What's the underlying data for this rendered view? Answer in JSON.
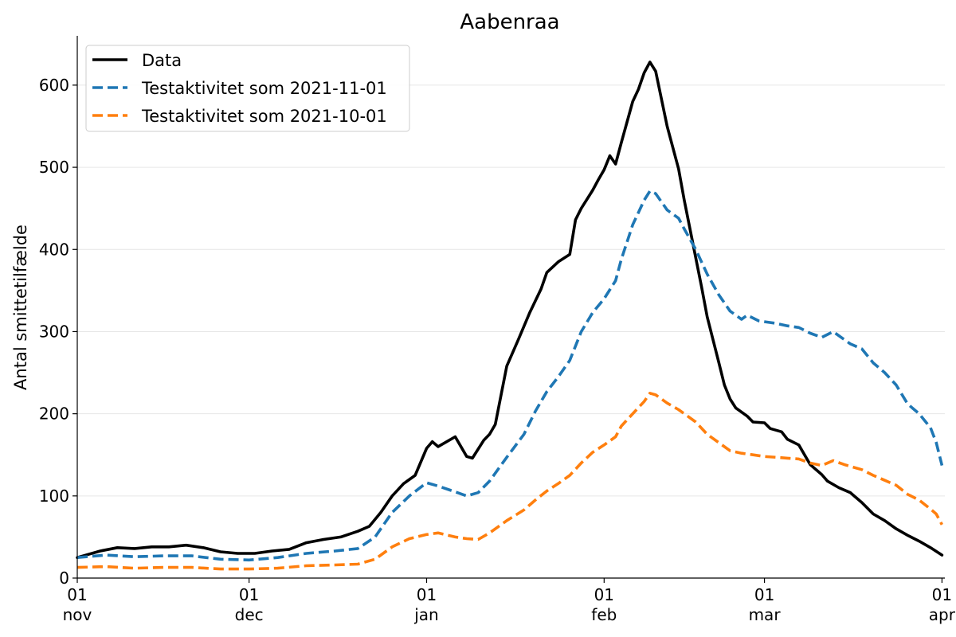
{
  "chart_data": {
    "type": "line",
    "title": "Aabenraa",
    "xlabel": "",
    "ylabel": "Antal smittetilfælde",
    "ylim": [
      0,
      660
    ],
    "yticks": [
      0,
      100,
      200,
      300,
      400,
      500,
      600
    ],
    "grid": "horizontal",
    "legend_position": "top-left",
    "xticks": [
      {
        "day": 0,
        "top": "01",
        "bottom": "nov"
      },
      {
        "day": 30,
        "top": "01",
        "bottom": "dec"
      },
      {
        "day": 61,
        "top": "01",
        "bottom": "jan"
      },
      {
        "day": 92,
        "top": "01",
        "bottom": "feb"
      },
      {
        "day": 120,
        "top": "01",
        "bottom": "mar"
      },
      {
        "day": 151,
        "top": "01",
        "bottom": "apr"
      }
    ],
    "x_start": "2021-11-01",
    "x_end": "2022-04-01",
    "series": [
      {
        "name": "Data",
        "color": "#000000",
        "dashed": false,
        "points": [
          [
            0,
            25
          ],
          [
            4,
            33
          ],
          [
            7,
            37
          ],
          [
            10,
            36
          ],
          [
            13,
            38
          ],
          [
            16,
            38
          ],
          [
            19,
            40
          ],
          [
            22,
            37
          ],
          [
            25,
            32
          ],
          [
            28,
            30
          ],
          [
            31,
            30
          ],
          [
            34,
            33
          ],
          [
            37,
            35
          ],
          [
            40,
            43
          ],
          [
            43,
            47
          ],
          [
            46,
            50
          ],
          [
            49,
            57
          ],
          [
            51,
            63
          ],
          [
            53,
            80
          ],
          [
            55,
            100
          ],
          [
            57,
            115
          ],
          [
            59,
            125
          ],
          [
            61,
            158
          ],
          [
            62,
            166
          ],
          [
            63,
            160
          ],
          [
            65,
            168
          ],
          [
            66,
            172
          ],
          [
            68,
            148
          ],
          [
            69,
            146
          ],
          [
            71,
            168
          ],
          [
            72,
            175
          ],
          [
            73,
            187
          ],
          [
            75,
            258
          ],
          [
            77,
            290
          ],
          [
            79,
            323
          ],
          [
            81,
            352
          ],
          [
            82,
            372
          ],
          [
            84,
            385
          ],
          [
            86,
            394
          ],
          [
            87,
            436
          ],
          [
            88,
            450
          ],
          [
            90,
            472
          ],
          [
            91,
            485
          ],
          [
            92,
            497
          ],
          [
            93,
            514
          ],
          [
            94,
            504
          ],
          [
            95,
            530
          ],
          [
            97,
            580
          ],
          [
            98,
            595
          ],
          [
            99,
            615
          ],
          [
            100,
            628
          ],
          [
            101,
            617
          ],
          [
            103,
            550
          ],
          [
            105,
            498
          ],
          [
            106,
            460
          ],
          [
            108,
            390
          ],
          [
            109,
            355
          ],
          [
            110,
            318
          ],
          [
            112,
            263
          ],
          [
            113,
            235
          ],
          [
            114,
            218
          ],
          [
            115,
            207
          ],
          [
            117,
            197
          ],
          [
            118,
            190
          ],
          [
            120,
            189
          ],
          [
            121,
            182
          ],
          [
            123,
            178
          ],
          [
            124,
            169
          ],
          [
            126,
            162
          ],
          [
            128,
            138
          ],
          [
            130,
            126
          ],
          [
            131,
            118
          ],
          [
            133,
            110
          ],
          [
            135,
            104
          ],
          [
            137,
            92
          ],
          [
            139,
            78
          ],
          [
            141,
            70
          ],
          [
            143,
            60
          ],
          [
            145,
            52
          ],
          [
            147,
            45
          ],
          [
            149,
            37
          ],
          [
            151,
            28
          ]
        ]
      },
      {
        "name": "Testaktivitet som 2021-11-01",
        "color": "#1f77b4",
        "dashed": true,
        "points": [
          [
            0,
            25
          ],
          [
            5,
            28
          ],
          [
            10,
            26
          ],
          [
            15,
            27
          ],
          [
            20,
            27
          ],
          [
            25,
            23
          ],
          [
            30,
            22
          ],
          [
            35,
            25
          ],
          [
            40,
            30
          ],
          [
            45,
            33
          ],
          [
            49,
            36
          ],
          [
            52,
            50
          ],
          [
            55,
            80
          ],
          [
            58,
            100
          ],
          [
            61,
            116
          ],
          [
            63,
            112
          ],
          [
            66,
            105
          ],
          [
            68,
            100
          ],
          [
            70,
            104
          ],
          [
            72,
            118
          ],
          [
            75,
            147
          ],
          [
            78,
            175
          ],
          [
            80,
            203
          ],
          [
            82,
            227
          ],
          [
            84,
            245
          ],
          [
            86,
            265
          ],
          [
            88,
            300
          ],
          [
            90,
            323
          ],
          [
            92,
            340
          ],
          [
            94,
            362
          ],
          [
            95,
            388
          ],
          [
            97,
            430
          ],
          [
            99,
            460
          ],
          [
            100,
            471
          ],
          [
            101,
            468
          ],
          [
            103,
            448
          ],
          [
            105,
            438
          ],
          [
            106,
            425
          ],
          [
            108,
            400
          ],
          [
            110,
            370
          ],
          [
            112,
            345
          ],
          [
            114,
            325
          ],
          [
            116,
            315
          ],
          [
            117,
            320
          ],
          [
            119,
            313
          ],
          [
            122,
            310
          ],
          [
            124,
            307
          ],
          [
            126,
            305
          ],
          [
            128,
            298
          ],
          [
            130,
            293
          ],
          [
            132,
            300
          ],
          [
            134,
            290
          ],
          [
            135,
            285
          ],
          [
            137,
            279
          ],
          [
            139,
            262
          ],
          [
            141,
            250
          ],
          [
            143,
            235
          ],
          [
            145,
            212
          ],
          [
            147,
            200
          ],
          [
            149,
            183
          ],
          [
            150,
            165
          ],
          [
            151,
            137
          ]
        ]
      },
      {
        "name": "Testaktivitet som 2021-10-01",
        "color": "#ff7f0e",
        "dashed": true,
        "points": [
          [
            0,
            13
          ],
          [
            5,
            14
          ],
          [
            10,
            12
          ],
          [
            15,
            13
          ],
          [
            20,
            13
          ],
          [
            25,
            11
          ],
          [
            30,
            11
          ],
          [
            35,
            12
          ],
          [
            40,
            15
          ],
          [
            45,
            16
          ],
          [
            49,
            17
          ],
          [
            52,
            23
          ],
          [
            55,
            38
          ],
          [
            58,
            48
          ],
          [
            61,
            53
          ],
          [
            63,
            55
          ],
          [
            66,
            50
          ],
          [
            68,
            48
          ],
          [
            70,
            47
          ],
          [
            72,
            55
          ],
          [
            75,
            70
          ],
          [
            78,
            83
          ],
          [
            80,
            95
          ],
          [
            82,
            106
          ],
          [
            84,
            115
          ],
          [
            86,
            125
          ],
          [
            88,
            140
          ],
          [
            90,
            153
          ],
          [
            92,
            162
          ],
          [
            94,
            172
          ],
          [
            95,
            185
          ],
          [
            97,
            200
          ],
          [
            99,
            215
          ],
          [
            100,
            225
          ],
          [
            101,
            223
          ],
          [
            103,
            213
          ],
          [
            105,
            205
          ],
          [
            106,
            200
          ],
          [
            108,
            190
          ],
          [
            110,
            175
          ],
          [
            112,
            165
          ],
          [
            114,
            155
          ],
          [
            116,
            152
          ],
          [
            118,
            150
          ],
          [
            120,
            148
          ],
          [
            122,
            147
          ],
          [
            124,
            146
          ],
          [
            126,
            145
          ],
          [
            128,
            140
          ],
          [
            130,
            137
          ],
          [
            132,
            143
          ],
          [
            134,
            138
          ],
          [
            135,
            136
          ],
          [
            137,
            132
          ],
          [
            139,
            125
          ],
          [
            141,
            119
          ],
          [
            143,
            113
          ],
          [
            145,
            102
          ],
          [
            147,
            95
          ],
          [
            149,
            84
          ],
          [
            150,
            78
          ],
          [
            151,
            65
          ]
        ]
      }
    ]
  }
}
